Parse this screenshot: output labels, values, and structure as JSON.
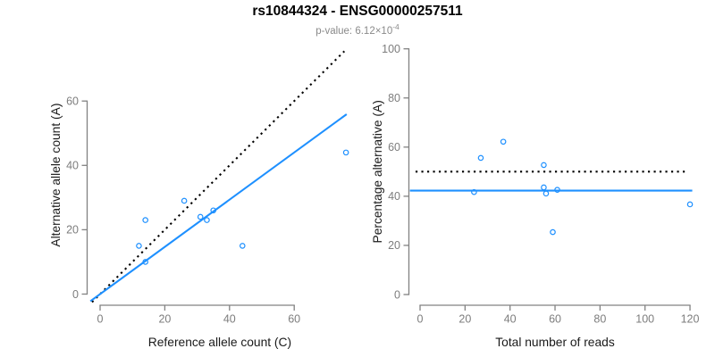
{
  "header": {
    "title": "rs10844324 - ENSG00000257511",
    "subtitle_text": "p-value: 6.12×10",
    "subtitle_superscript": "-4"
  },
  "colors": {
    "accent_blue": "#1E90FF",
    "dotted_black": "#000000",
    "axis": "#828282",
    "tick_label": "#7d7d7d",
    "axis_title": "#1a1a1a",
    "subtitle_gray": "#8a8a8a"
  },
  "chart_data": [
    {
      "type": "scatter",
      "name": "allele-counts-scatter",
      "xlabel": "Reference allele count (C)",
      "ylabel": "Alternative allele count (A)",
      "xlim": [
        -4,
        78
      ],
      "ylim": [
        -4,
        78
      ],
      "xticks": [
        0,
        20,
        40,
        60
      ],
      "yticks": [
        0,
        20,
        40,
        60
      ],
      "grid": false,
      "point_color": "#1E90FF",
      "points": [
        [
          26,
          29
        ],
        [
          14,
          23
        ],
        [
          31,
          24
        ],
        [
          33,
          23
        ],
        [
          35,
          26
        ],
        [
          12,
          15
        ],
        [
          44,
          15
        ],
        [
          14,
          10
        ],
        [
          76,
          44
        ]
      ],
      "lines": [
        {
          "name": "identity-dotted-line",
          "style": "dotted",
          "color": "#000000",
          "x1": -2.5,
          "y1": -2.5,
          "x2": 75.5,
          "y2": 75.5
        },
        {
          "name": "regression-line",
          "style": "solid",
          "color": "#1E90FF",
          "x1": -3,
          "y1": -2.2,
          "x2": 76.2,
          "y2": 55.9
        }
      ]
    },
    {
      "type": "scatter",
      "name": "percentage-vs-reads-scatter",
      "xlabel": "Total number of reads",
      "ylabel": "Percentage alternative (A)",
      "xlim": [
        -5,
        125
      ],
      "ylim": [
        -4,
        104
      ],
      "xticks": [
        0,
        20,
        40,
        60,
        80,
        100,
        120
      ],
      "yticks": [
        0,
        20,
        40,
        60,
        80,
        100
      ],
      "grid": false,
      "point_color": "#1E90FF",
      "points": [
        [
          24,
          41.7
        ],
        [
          27,
          55.6
        ],
        [
          37,
          62.2
        ],
        [
          55,
          52.7
        ],
        [
          55,
          43.6
        ],
        [
          56,
          41.1
        ],
        [
          59,
          25.4
        ],
        [
          61,
          42.6
        ],
        [
          120,
          36.7
        ]
      ],
      "lines": [
        {
          "name": "fifty-percent-dotted-line",
          "style": "dotted",
          "color": "#000000",
          "x1": -2,
          "y1": 50,
          "x2": 118.5,
          "y2": 50
        },
        {
          "name": "mean-percentage-line",
          "style": "solid",
          "color": "#1E90FF",
          "x1": -4.5,
          "y1": 42.3,
          "x2": 121,
          "y2": 42.3
        }
      ]
    }
  ]
}
